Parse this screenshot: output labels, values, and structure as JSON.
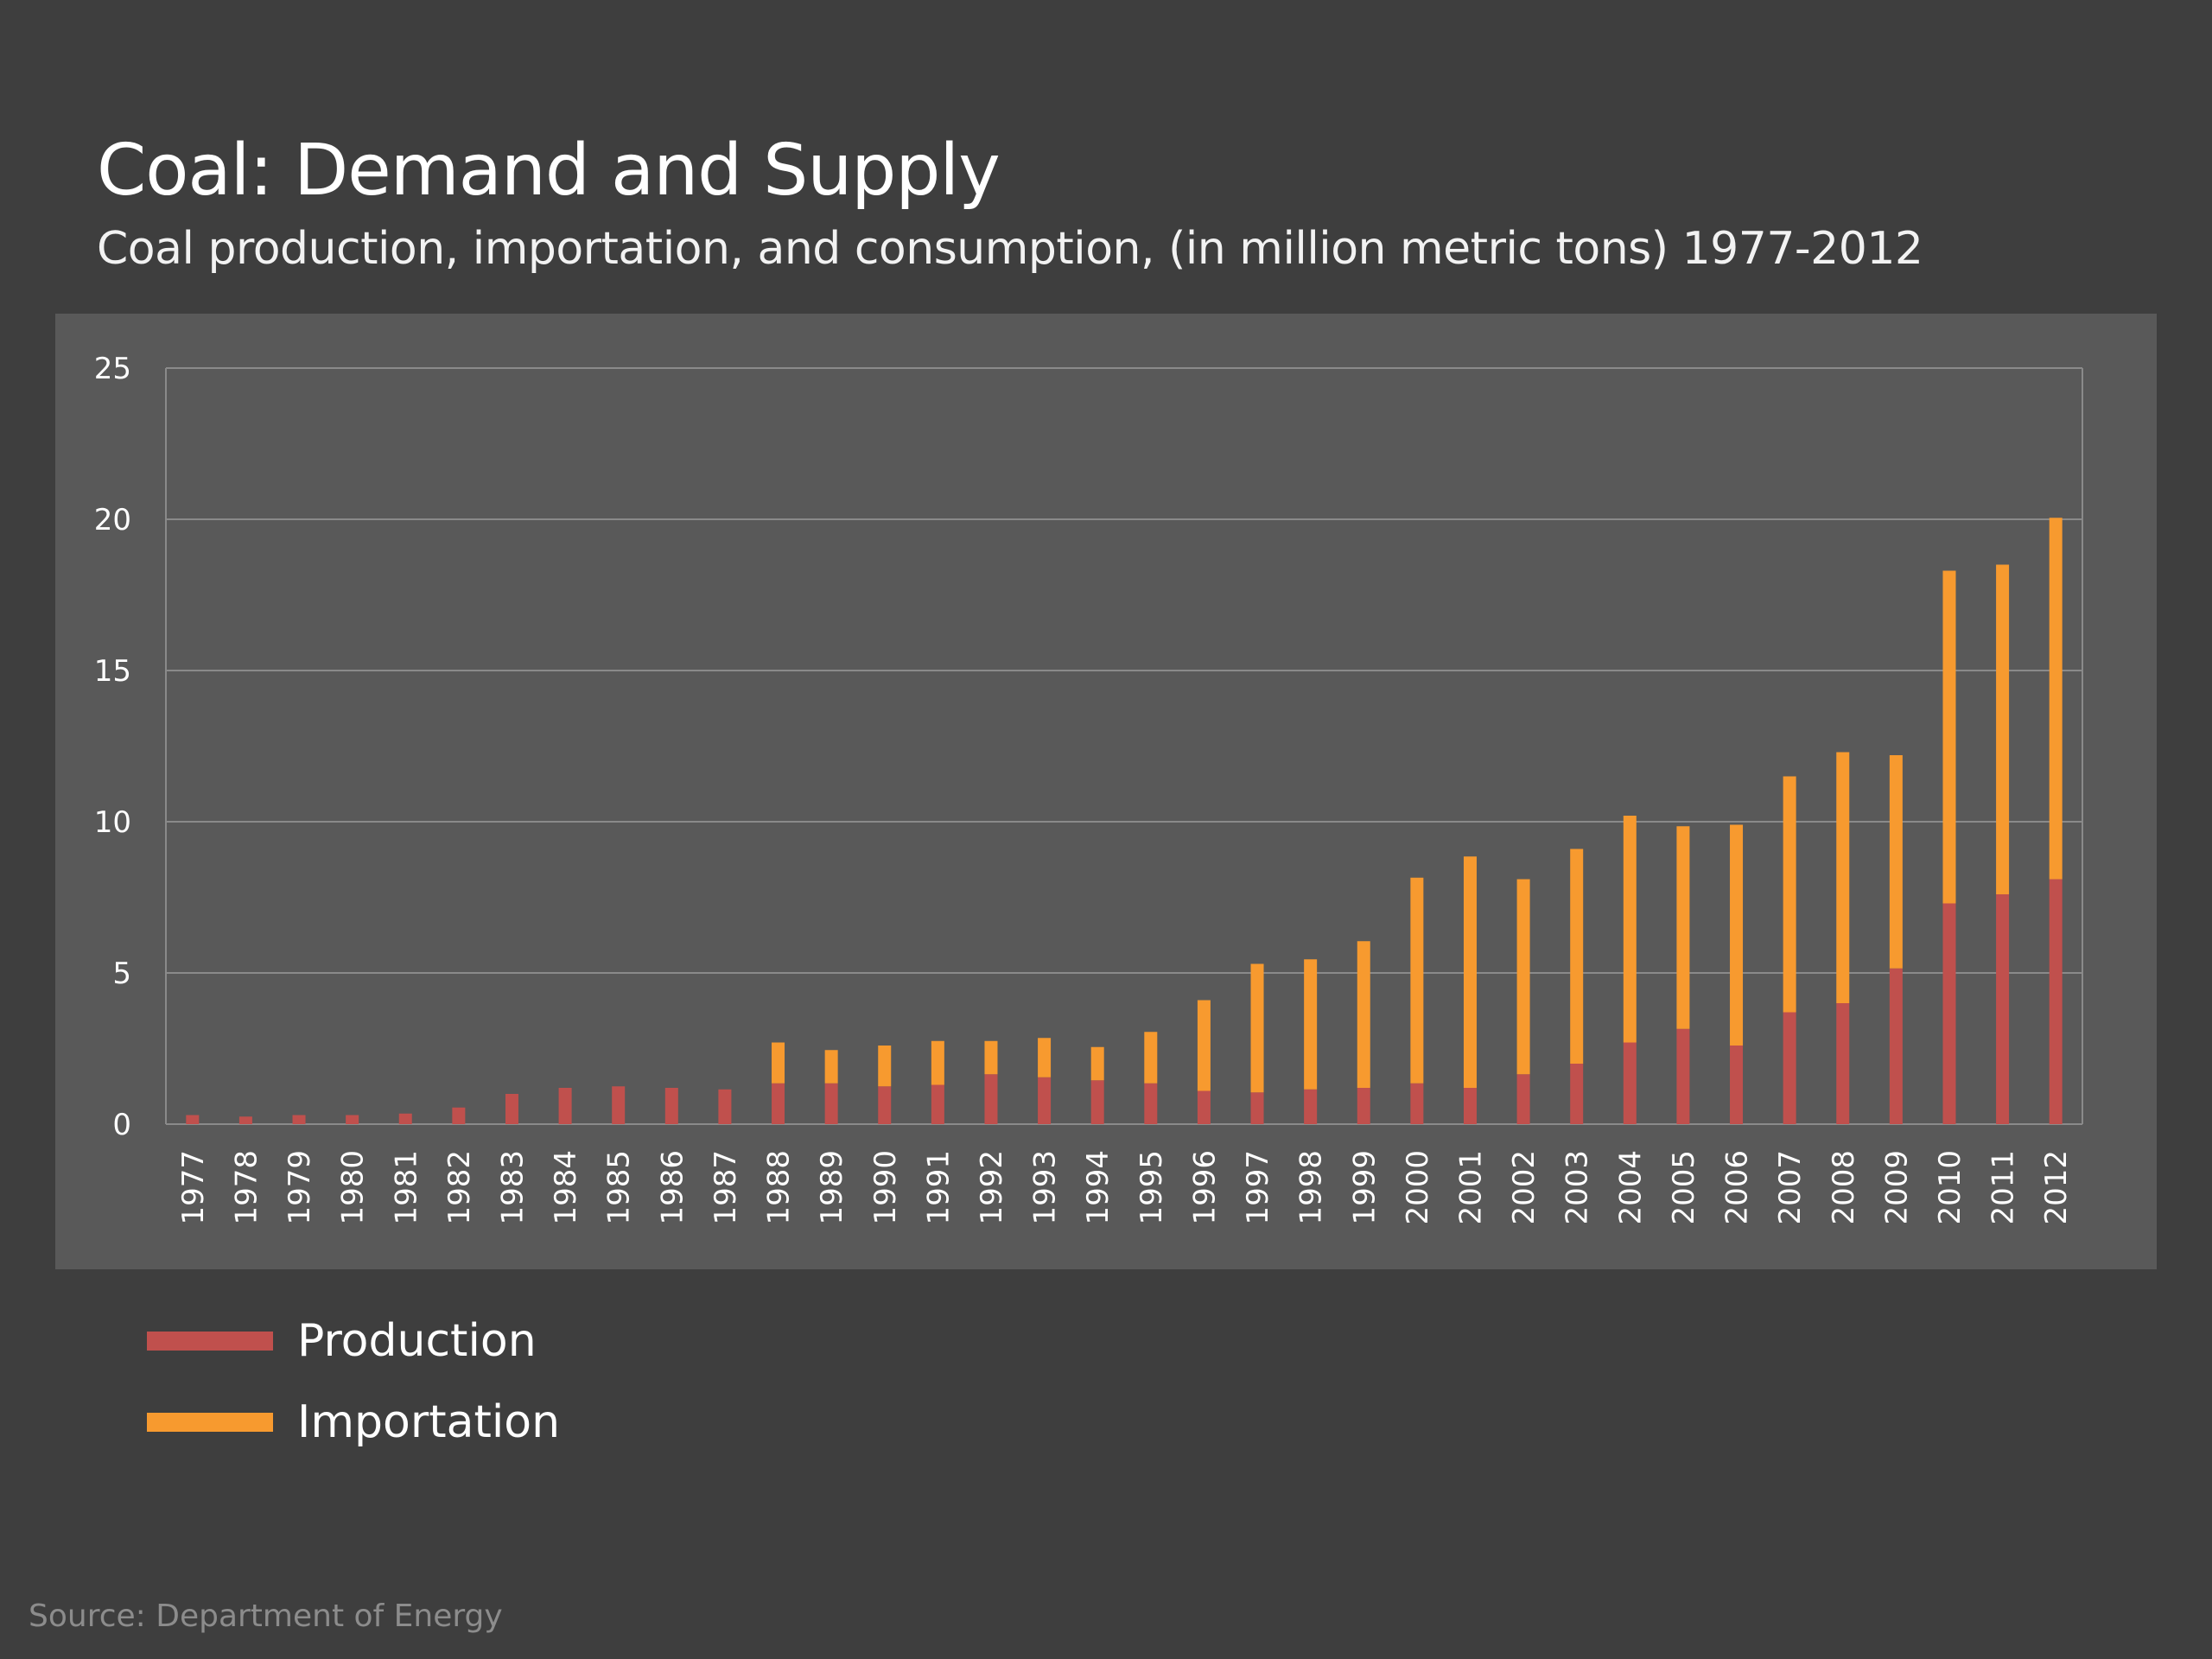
{
  "colors": {
    "background": "#3e3e3e",
    "panel": "#595959",
    "grid": "#8a8a8a",
    "production": "#c0504d",
    "importation": "#f79a2f"
  },
  "source": "Source: Department of Energy",
  "chart_data": {
    "type": "bar",
    "stacked": true,
    "title": "Coal: Demand and Supply",
    "subtitle": "Coal production, importation, and consumption, (in million metric tons) 1977-2012",
    "xlabel": "",
    "ylabel": "",
    "ylim": [
      0,
      25
    ],
    "yticks": [
      0,
      5,
      10,
      15,
      20,
      25
    ],
    "grid": true,
    "legend_position": "bottom-left",
    "categories": [
      "1977",
      "1978",
      "1979",
      "1980",
      "1981",
      "1982",
      "1983",
      "1984",
      "1985",
      "1986",
      "1987",
      "1988",
      "1989",
      "1990",
      "1991",
      "1992",
      "1993",
      "1994",
      "1995",
      "1996",
      "1997",
      "1998",
      "1999",
      "2000",
      "2001",
      "2002",
      "2003",
      "2004",
      "2005",
      "2006",
      "2007",
      "2008",
      "2009",
      "2010",
      "2011",
      "2012"
    ],
    "series": [
      {
        "name": "Production",
        "color": "#c0504d",
        "values": [
          0.3,
          0.25,
          0.3,
          0.3,
          0.35,
          0.55,
          1.0,
          1.2,
          1.25,
          1.2,
          1.15,
          1.35,
          1.35,
          1.25,
          1.3,
          1.65,
          1.55,
          1.45,
          1.35,
          1.1,
          1.05,
          1.15,
          1.2,
          1.35,
          1.2,
          1.65,
          2.0,
          2.7,
          3.15,
          2.6,
          3.7,
          4.0,
          5.15,
          7.3,
          7.6,
          8.1
        ]
      },
      {
        "name": "Importation",
        "color": "#f79a2f",
        "values": [
          0,
          0,
          0,
          0,
          0,
          0,
          0,
          0,
          0,
          0,
          0,
          1.35,
          1.1,
          1.35,
          1.45,
          1.1,
          1.3,
          1.1,
          1.7,
          3.0,
          4.25,
          4.3,
          4.85,
          6.8,
          7.65,
          6.45,
          7.1,
          7.5,
          6.7,
          7.3,
          7.8,
          8.3,
          7.05,
          11.0,
          10.9,
          11.95
        ]
      }
    ]
  }
}
